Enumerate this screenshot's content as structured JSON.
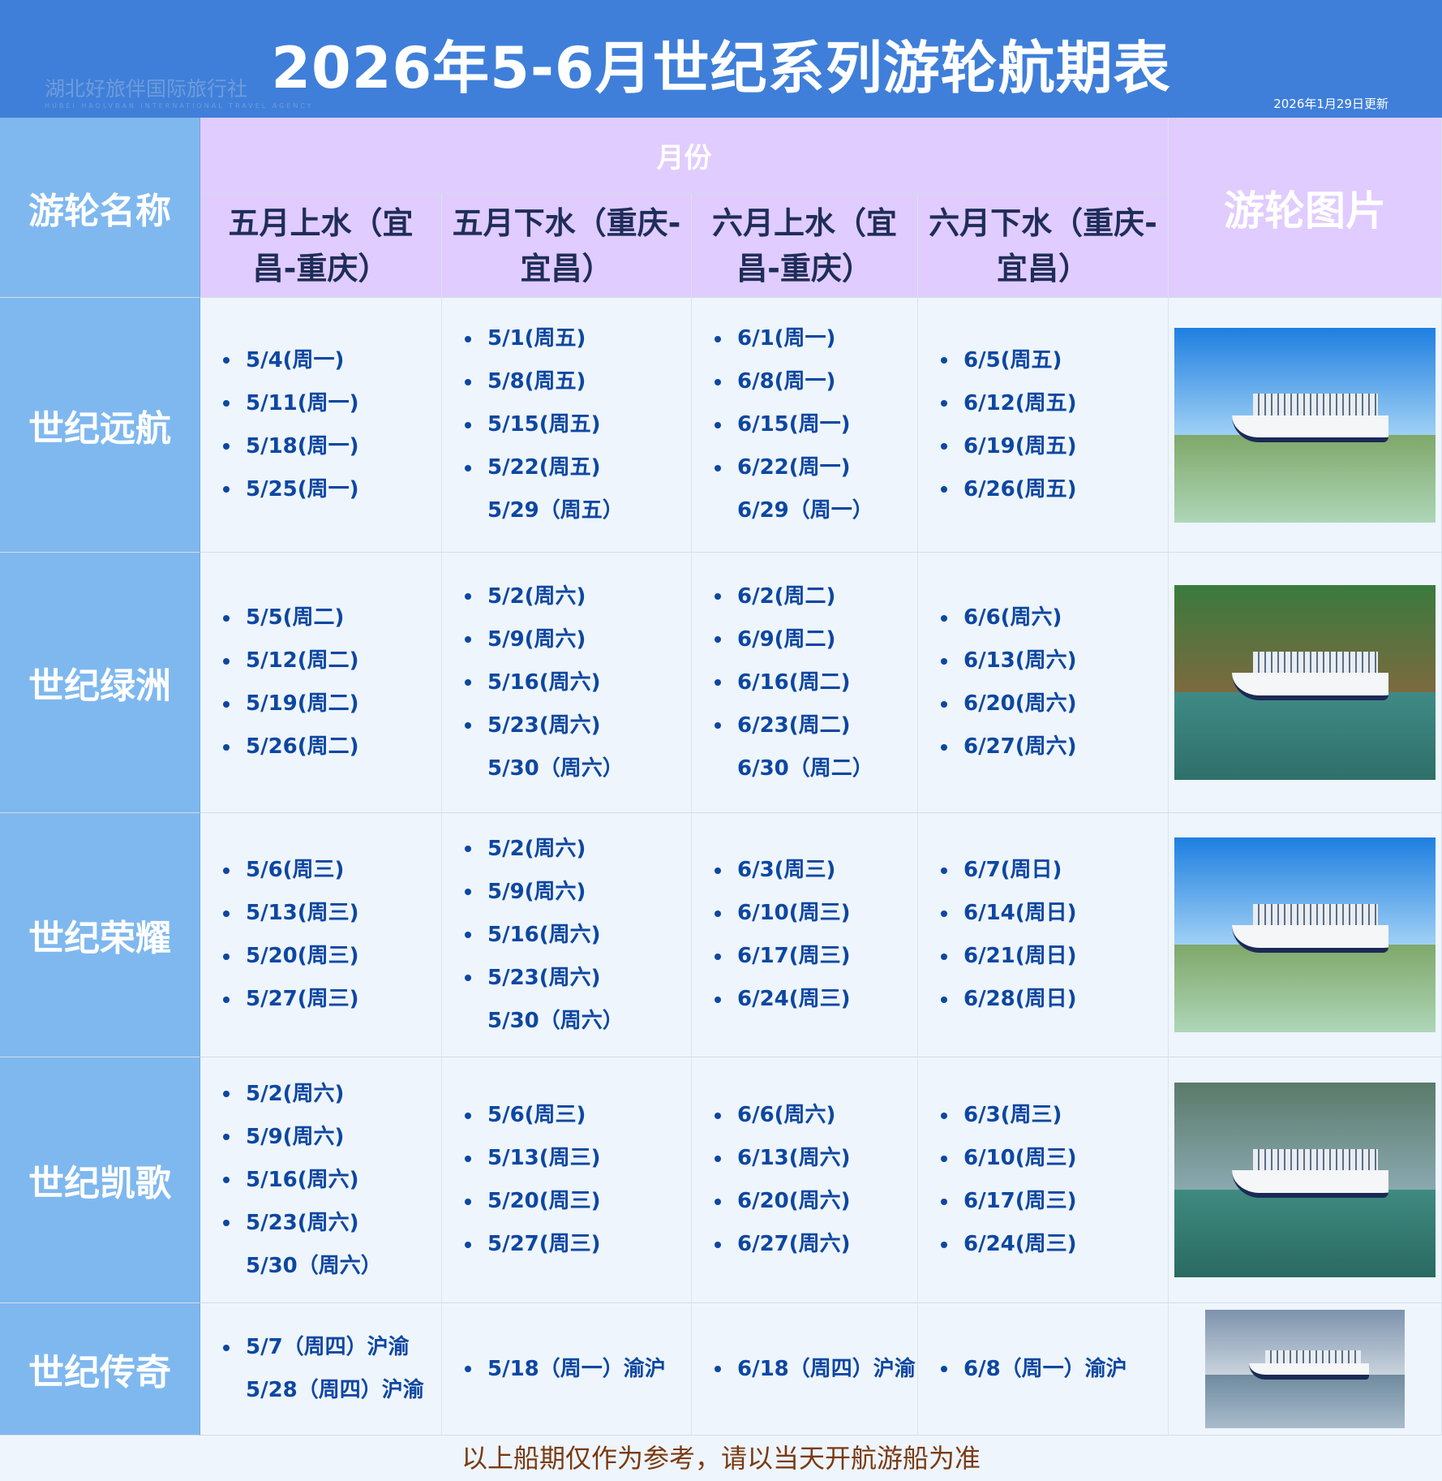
{
  "header": {
    "title": "2026年5-6月世纪系列游轮航期表",
    "updated": "2026年1月29日更新",
    "watermark": "湖北好旅伴国际旅行社",
    "watermark_en": "HUBEI HAOLVBAN INTERNATIONAL TRAVEL AGENCY"
  },
  "table": {
    "name_header": "游轮名称",
    "month_header": "月份",
    "picture_header": "游轮图片",
    "columns": [
      "五月上水（宜昌-重庆）",
      "五月下水（重庆-宜昌）",
      "六月上水（宜昌-重庆）",
      "六月下水（重庆-宜昌）"
    ],
    "rows": [
      {
        "name": "世纪远航",
        "cells": [
          [
            {
              "t": "5/4(周一)",
              "b": true
            },
            {
              "t": "5/11(周一)",
              "b": true
            },
            {
              "t": "5/18(周一)",
              "b": true
            },
            {
              "t": "5/25(周一)",
              "b": true
            }
          ],
          [
            {
              "t": "5/1(周五)",
              "b": true
            },
            {
              "t": "5/8(周五)",
              "b": true
            },
            {
              "t": "5/15(周五)",
              "b": true
            },
            {
              "t": "5/22(周五)",
              "b": true
            },
            {
              "t": "5/29（周五）",
              "b": false
            }
          ],
          [
            {
              "t": "6/1(周一)",
              "b": true
            },
            {
              "t": "6/8(周一)",
              "b": true
            },
            {
              "t": "6/15(周一)",
              "b": true
            },
            {
              "t": "6/22(周一)",
              "b": true
            },
            {
              "t": "6/29（周一）",
              "b": false
            }
          ],
          [
            {
              "t": "6/5(周五)",
              "b": true
            },
            {
              "t": "6/12(周五)",
              "b": true
            },
            {
              "t": "6/19(周五)",
              "b": true
            },
            {
              "t": "6/26(周五)",
              "b": true
            }
          ]
        ]
      },
      {
        "name": "世纪绿洲",
        "cells": [
          [
            {
              "t": "5/5(周二)",
              "b": true
            },
            {
              "t": "5/12(周二)",
              "b": true
            },
            {
              "t": "5/19(周二)",
              "b": true
            },
            {
              "t": "5/26(周二)",
              "b": true
            }
          ],
          [
            {
              "t": "5/2(周六)",
              "b": true
            },
            {
              "t": "5/9(周六)",
              "b": true
            },
            {
              "t": "5/16(周六)",
              "b": true
            },
            {
              "t": "5/23(周六)",
              "b": true
            },
            {
              "t": "5/30（周六）",
              "b": false
            }
          ],
          [
            {
              "t": "6/2(周二)",
              "b": true
            },
            {
              "t": "6/9(周二)",
              "b": true
            },
            {
              "t": "6/16(周二)",
              "b": true
            },
            {
              "t": "6/23(周二)",
              "b": true
            },
            {
              "t": "6/30（周二）",
              "b": false
            }
          ],
          [
            {
              "t": "6/6(周六)",
              "b": true
            },
            {
              "t": "6/13(周六)",
              "b": true
            },
            {
              "t": "6/20(周六)",
              "b": true
            },
            {
              "t": "6/27(周六)",
              "b": true
            }
          ]
        ]
      },
      {
        "name": "世纪荣耀",
        "cells": [
          [
            {
              "t": "5/6(周三)",
              "b": true
            },
            {
              "t": "5/13(周三)",
              "b": true
            },
            {
              "t": "5/20(周三)",
              "b": true
            },
            {
              "t": "5/27(周三)",
              "b": true
            }
          ],
          [
            {
              "t": "5/2(周六)",
              "b": true
            },
            {
              "t": "5/9(周六)",
              "b": true
            },
            {
              "t": "5/16(周六)",
              "b": true
            },
            {
              "t": "5/23(周六)",
              "b": true
            },
            {
              "t": "5/30（周六）",
              "b": false
            }
          ],
          [
            {
              "t": "6/3(周三)",
              "b": true
            },
            {
              "t": "6/10(周三)",
              "b": true
            },
            {
              "t": "6/17(周三)",
              "b": true
            },
            {
              "t": "6/24(周三)",
              "b": true
            }
          ],
          [
            {
              "t": "6/7(周日)",
              "b": true
            },
            {
              "t": "6/14(周日)",
              "b": true
            },
            {
              "t": "6/21(周日)",
              "b": true
            },
            {
              "t": "6/28(周日)",
              "b": true
            }
          ]
        ]
      },
      {
        "name": "世纪凯歌",
        "cells": [
          [
            {
              "t": "5/2(周六)",
              "b": true
            },
            {
              "t": "5/9(周六)",
              "b": true
            },
            {
              "t": "5/16(周六)",
              "b": true
            },
            {
              "t": "5/23(周六)",
              "b": true
            },
            {
              "t": "5/30（周六）",
              "b": false
            }
          ],
          [
            {
              "t": "5/6(周三)",
              "b": true
            },
            {
              "t": "5/13(周三)",
              "b": true
            },
            {
              "t": "5/20(周三)",
              "b": true
            },
            {
              "t": "5/27(周三)",
              "b": true
            }
          ],
          [
            {
              "t": "6/6(周六)",
              "b": true
            },
            {
              "t": "6/13(周六)",
              "b": true
            },
            {
              "t": "6/20(周六)",
              "b": true
            },
            {
              "t": "6/27(周六)",
              "b": true
            }
          ],
          [
            {
              "t": "6/3(周三)",
              "b": true
            },
            {
              "t": "6/10(周三)",
              "b": true
            },
            {
              "t": "6/17(周三)",
              "b": true
            },
            {
              "t": "6/24(周三)",
              "b": true
            }
          ]
        ]
      },
      {
        "name": "世纪传奇",
        "cells": [
          [
            {
              "t": "5/7（周四）沪渝",
              "b": true
            },
            {
              "t": "5/28（周四）沪渝",
              "b": false
            }
          ],
          [
            {
              "t": "5/18（周一）渝沪",
              "b": true
            }
          ],
          [
            {
              "t": "6/18（周四）沪渝",
              "b": true
            }
          ],
          [
            {
              "t": "6/8（周一）渝沪",
              "b": true
            }
          ]
        ]
      }
    ]
  },
  "footer": {
    "note": "以上船期仅作为参考，请以当天开航游船为准"
  },
  "colors": {
    "header": "#3f7fd9",
    "name_column": "#7fb8ef",
    "column_header": "#e0ccff",
    "cell": "#eef5fd",
    "date_text": "#0d47a1",
    "footer_text": "#7a3a10"
  }
}
